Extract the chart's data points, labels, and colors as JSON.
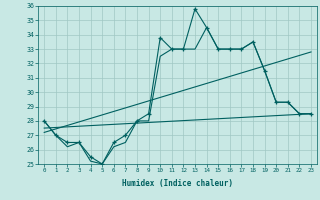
{
  "title": "",
  "xlabel": "Humidex (Indice chaleur)",
  "xlim": [
    -0.5,
    23.5
  ],
  "ylim": [
    25,
    36
  ],
  "yticks": [
    25,
    26,
    27,
    28,
    29,
    30,
    31,
    32,
    33,
    34,
    35,
    36
  ],
  "xticks": [
    0,
    1,
    2,
    3,
    4,
    5,
    6,
    7,
    8,
    9,
    10,
    11,
    12,
    13,
    14,
    15,
    16,
    17,
    18,
    19,
    20,
    21,
    22,
    23
  ],
  "background_color": "#c8e8e4",
  "grid_color": "#a0c8c4",
  "line_color": "#006060",
  "lines": [
    {
      "x": [
        0,
        1,
        2,
        3,
        4,
        5,
        6,
        7,
        8,
        9,
        10,
        11,
        12,
        13,
        14,
        15,
        16,
        17,
        18,
        19,
        20,
        21,
        22,
        23
      ],
      "y": [
        28,
        27,
        26.5,
        26.5,
        25.5,
        25,
        26.5,
        27,
        28,
        28.5,
        33.8,
        33,
        33,
        35.8,
        34.5,
        33,
        33,
        33,
        33.5,
        31.5,
        29.3,
        29.3,
        28.5,
        28.5
      ],
      "marker": true
    },
    {
      "x": [
        0,
        1,
        2,
        3,
        4,
        5,
        6,
        7,
        8,
        9,
        10,
        11,
        12,
        13,
        14,
        15,
        16,
        17,
        18,
        19,
        20,
        21,
        22,
        23
      ],
      "y": [
        28,
        27,
        26.2,
        26.5,
        25.2,
        25,
        26.2,
        26.5,
        28,
        28,
        32.5,
        33,
        33,
        33,
        34.5,
        33,
        33,
        33,
        33.5,
        31.5,
        29.3,
        29.3,
        28.5,
        28.5
      ],
      "marker": false
    },
    {
      "x": [
        0,
        23
      ],
      "y": [
        27.2,
        32.8
      ],
      "marker": false
    },
    {
      "x": [
        0,
        23
      ],
      "y": [
        27.5,
        28.5
      ],
      "marker": false
    }
  ]
}
